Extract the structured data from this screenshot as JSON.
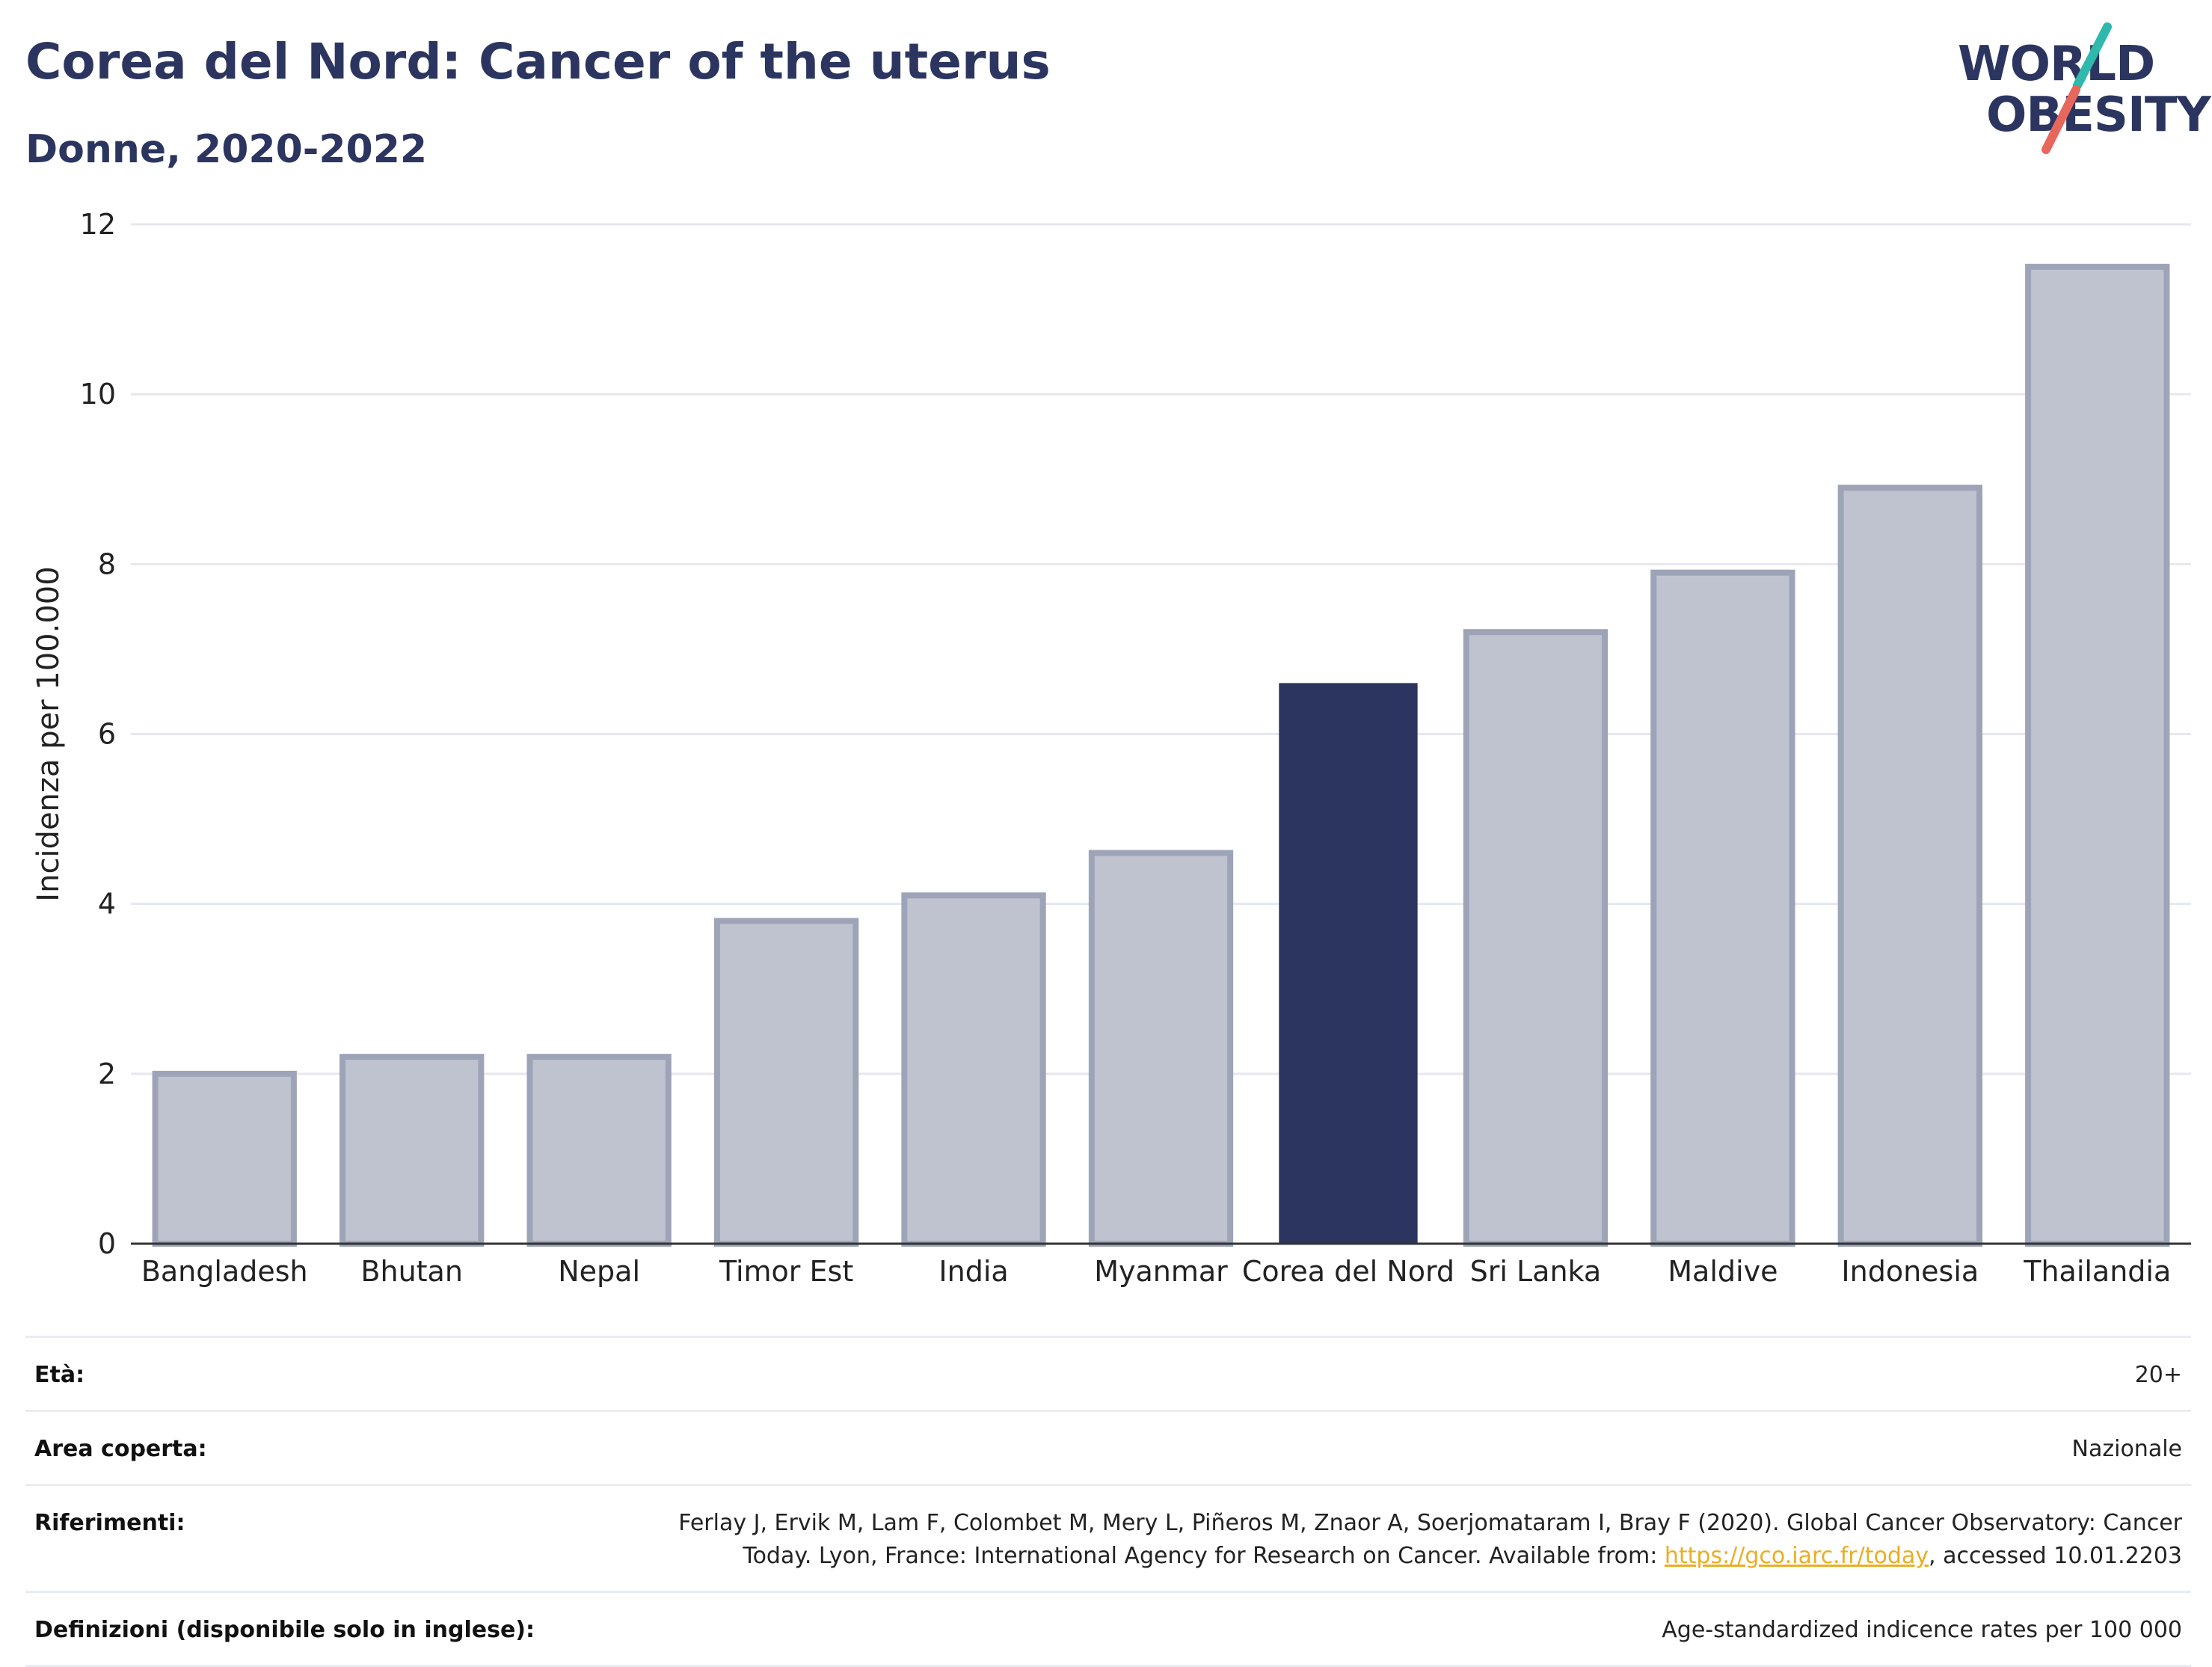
{
  "header": {
    "title": "Corea del Nord: Cancer of the uterus",
    "subtitle": "Donne, 2020-2022"
  },
  "logo": {
    "line1": "WORLD",
    "line2": "OBESITY",
    "accent_colors": [
      "#2fb8ac",
      "#e8675d"
    ]
  },
  "chart_data": {
    "type": "bar",
    "categories": [
      "Bangladesh",
      "Bhutan",
      "Nepal",
      "Timor Est",
      "India",
      "Myanmar",
      "Corea del Nord",
      "Sri Lanka",
      "Maldive",
      "Indonesia",
      "Thailandia"
    ],
    "values": [
      2.0,
      2.2,
      2.2,
      3.8,
      4.1,
      4.6,
      6.6,
      7.2,
      7.9,
      8.9,
      11.5
    ],
    "highlight": "Corea del Nord",
    "ylabel": "Incidenza per 100.000",
    "ylim": [
      0,
      12
    ],
    "yticks": [
      0,
      2,
      4,
      6,
      8,
      10,
      12
    ],
    "grid": true,
    "colors": {
      "bar": "#bfc3cf",
      "bar_border": "#9ea4b8",
      "highlight": "#2b3560",
      "grid": "#e6e8ee",
      "axis": "#333333"
    }
  },
  "footer": {
    "age_label": "Età:",
    "age_value": "20+",
    "area_label": "Area coperta:",
    "area_value": "Nazionale",
    "references_label": "Riferimenti:",
    "references_text_1": "Ferlay J, Ervik M, Lam F, Colombet M, Mery L, Piñeros M, Znaor A, Soerjomataram I, Bray F (2020). Global Cancer Observatory: Cancer Today. Lyon, France: International Agency for Research on Cancer. Available from: ",
    "references_link": "https://gco.iarc.fr/today",
    "references_text_2": ", accessed 10.01.2203",
    "definitions_label": "Definizioni (disponibile solo in inglese):",
    "definitions_value": "Age-standardized indicence rates per 100 000"
  }
}
